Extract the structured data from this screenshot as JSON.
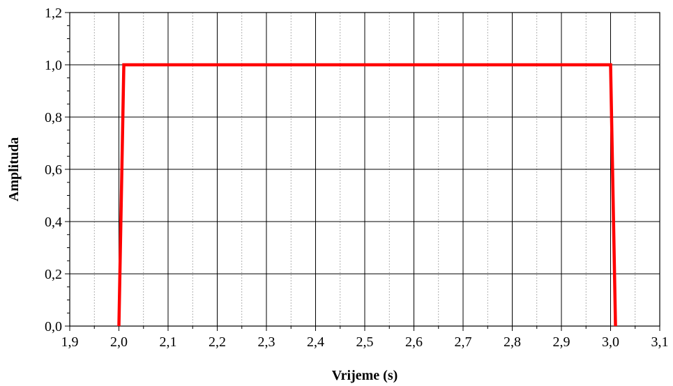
{
  "chart_data": {
    "type": "line",
    "title": "",
    "xlabel": "Vrijeme (s)",
    "ylabel": "Amplituda",
    "xlim": [
      1.9,
      3.1
    ],
    "ylim": [
      0.0,
      1.2
    ],
    "x_major_ticks": [
      "1,9",
      "2,0",
      "2,1",
      "2,2",
      "2,3",
      "2,4",
      "2,5",
      "2,6",
      "2,7",
      "2,8",
      "2,9",
      "3,0",
      "3,1"
    ],
    "y_major_ticks": [
      "0,0",
      "0,2",
      "0,4",
      "0,6",
      "0,8",
      "1,0",
      "1,2"
    ],
    "grid": true,
    "minor_grid_x": true,
    "series": [
      {
        "color": "#ff0000",
        "x": [
          2.0,
          2.01,
          3.0,
          3.01
        ],
        "y": [
          0.0,
          1.0,
          1.0,
          0.0
        ]
      }
    ]
  }
}
